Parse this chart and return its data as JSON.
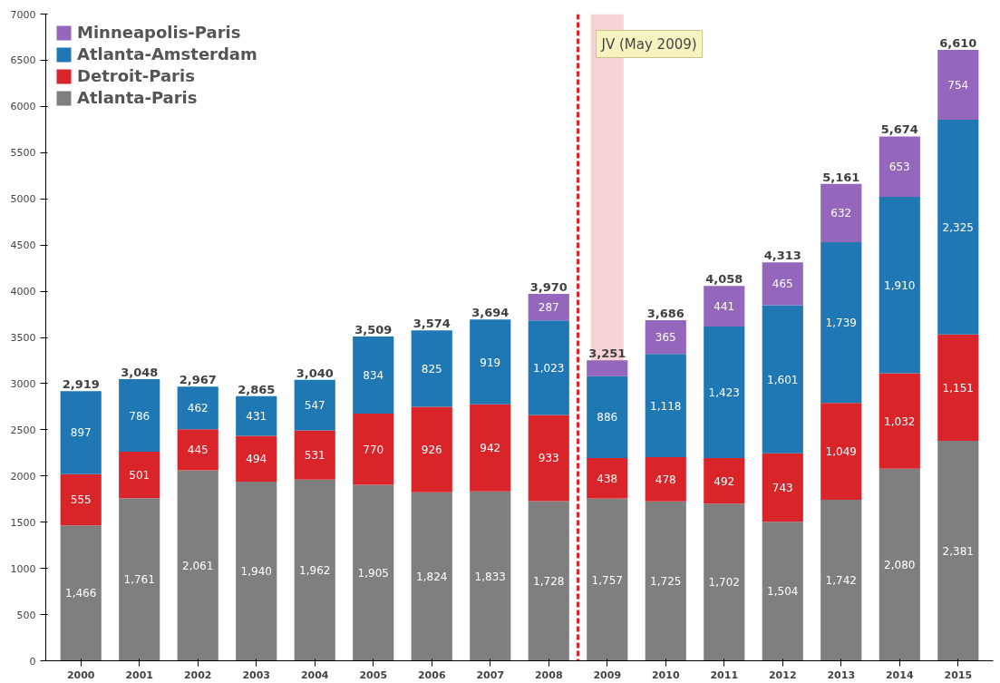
{
  "chart_data": {
    "type": "bar",
    "stacked": true,
    "x": [
      2000,
      2001,
      2002,
      2003,
      2004,
      2005,
      2006,
      2007,
      2008,
      2009,
      2010,
      2011,
      2012,
      2013,
      2014,
      2015
    ],
    "xlim": [
      1999.4,
      2015.6
    ],
    "xticks": [
      2000,
      2001,
      2002,
      2003,
      2004,
      2005,
      2006,
      2007,
      2008,
      2009,
      2010,
      2011,
      2012,
      2013,
      2014,
      2015
    ],
    "ylim": [
      0,
      7000
    ],
    "yticks": [
      0,
      500,
      1000,
      1500,
      2000,
      2500,
      3000,
      3500,
      4000,
      4500,
      5000,
      5500,
      6000,
      6500,
      7000
    ],
    "grid": false,
    "legend": "top left",
    "series": [
      {
        "name": "Atlanta-Paris",
        "color": "#7f7f7f",
        "values": [
          1466,
          1761,
          2061,
          1940,
          1962,
          1905,
          1824,
          1833,
          1728,
          1757,
          1725,
          1702,
          1504,
          1742,
          2080,
          2381
        ],
        "value_labels": [
          "1,466",
          "1,761",
          "2,061",
          "1,940",
          "1,962",
          "1,905",
          "1,824",
          "1,833",
          "1,728",
          "1,757",
          "1,725",
          "1,702",
          "1,504",
          "1,742",
          "2,080",
          "2,381"
        ]
      },
      {
        "name": "Detroit-Paris",
        "color": "#d9252a",
        "values": [
          555,
          501,
          445,
          494,
          531,
          770,
          926,
          942,
          933,
          438,
          478,
          492,
          743,
          1049,
          1032,
          1151
        ],
        "value_labels": [
          "555",
          "501",
          "445",
          "494",
          "531",
          "770",
          "926",
          "942",
          "933",
          "438",
          "478",
          "492",
          "743",
          "1,049",
          "1,032",
          "1,151"
        ]
      },
      {
        "name": "Atlanta-Amsterdam",
        "color": "#1f77b4",
        "values": [
          897,
          786,
          462,
          431,
          547,
          834,
          825,
          919,
          1023,
          886,
          1118,
          1423,
          1601,
          1739,
          1910,
          2325
        ],
        "value_labels": [
          "897",
          "786",
          "462",
          "431",
          "547",
          "834",
          "825",
          "919",
          "1,023",
          "886",
          "1,118",
          "1,423",
          "1,601",
          "1,739",
          "1,910",
          "2,325"
        ]
      },
      {
        "name": "Minneapolis-Paris",
        "color": "#9467bd",
        "values": [
          null,
          null,
          null,
          null,
          null,
          null,
          null,
          null,
          287,
          170,
          365,
          441,
          465,
          632,
          653,
          754
        ],
        "value_labels": [
          null,
          null,
          null,
          null,
          null,
          null,
          null,
          null,
          "287",
          null,
          "365",
          "441",
          "465",
          "632",
          "653",
          "754"
        ]
      }
    ],
    "totals": [
      "2,919",
      "3,048",
      "2,967",
      "2,865",
      "3,040",
      "3,509",
      "3,574",
      "3,694",
      "3,970",
      "3,251",
      "3,686",
      "4,058",
      "4,313",
      "5,161",
      "5,674",
      "6,610"
    ],
    "ref_lines": [
      {
        "axis": "x",
        "value": 2008.5,
        "label": null,
        "color": "#e8202a",
        "line_style": "dashed"
      }
    ],
    "bands": [
      {
        "axis": "x",
        "from": 2008.72,
        "to": 2009.28,
        "label": null,
        "color": "#f4b6b9"
      }
    ],
    "annotations": [
      "JV (May 2009)"
    ]
  }
}
